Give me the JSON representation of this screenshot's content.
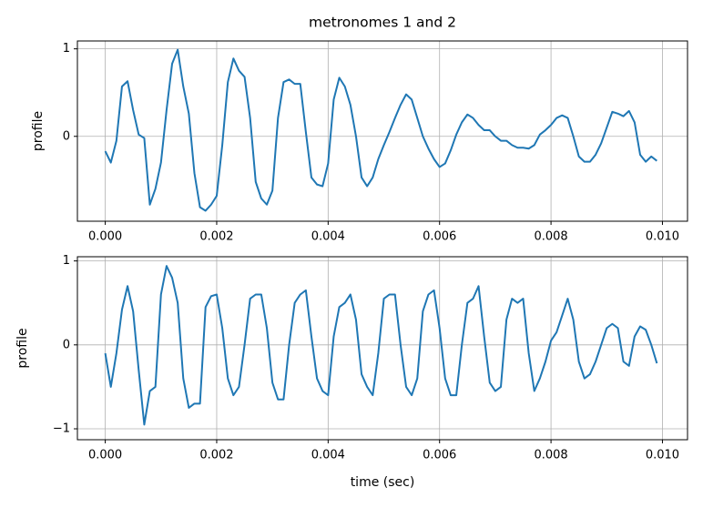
{
  "chart_data": [
    {
      "type": "line",
      "title": "metronomes 1 and 2",
      "ylabel": "profile",
      "color": "#1f77b4",
      "grid": true,
      "xlim": [
        -0.0005,
        0.01045
      ],
      "ylim": [
        -0.97,
        1.09
      ],
      "xticks": [
        {
          "value": 0,
          "label": "0.000"
        },
        {
          "value": 0.002,
          "label": "0.002"
        },
        {
          "value": 0.004,
          "label": "0.004"
        },
        {
          "value": 0.006,
          "label": "0.006"
        },
        {
          "value": 0.008,
          "label": "0.008"
        },
        {
          "value": 0.01,
          "label": "0.010"
        }
      ],
      "yticks": [
        0,
        1
      ],
      "x": [
        0,
        0.0001,
        0.0002,
        0.0003,
        0.0004,
        0.0005,
        0.0006,
        0.0007,
        0.0008,
        0.0009,
        0.001,
        0.0011,
        0.0012,
        0.0013,
        0.0014,
        0.0015,
        0.0016,
        0.0017,
        0.0018,
        0.0019,
        0.002,
        0.0021,
        0.0022,
        0.0023,
        0.0024,
        0.0025,
        0.0026,
        0.0027,
        0.0028,
        0.0029,
        0.003,
        0.0031,
        0.0032,
        0.0033,
        0.0034,
        0.0035,
        0.0036,
        0.0037,
        0.0038,
        0.0039,
        0.004,
        0.0041,
        0.0042,
        0.0043,
        0.0044,
        0.0045,
        0.0046,
        0.0047,
        0.0048,
        0.0049,
        0.005,
        0.0051,
        0.0052,
        0.0053,
        0.0054,
        0.0055,
        0.0056,
        0.0057,
        0.0058,
        0.0059,
        0.006,
        0.0061,
        0.0062,
        0.0063,
        0.0064,
        0.0065,
        0.0066,
        0.0067,
        0.0068,
        0.0069,
        0.007,
        0.0071,
        0.0072,
        0.0073,
        0.0074,
        0.0075,
        0.0076,
        0.0077,
        0.0078,
        0.0079,
        0.008,
        0.0081,
        0.0082,
        0.0083,
        0.0084,
        0.0085,
        0.0086,
        0.0087,
        0.0088,
        0.0089,
        0.009,
        0.0091,
        0.0092,
        0.0093,
        0.0094,
        0.0095,
        0.0096,
        0.0097,
        0.0098,
        0.0099
      ],
      "values": [
        -0.17,
        -0.3,
        -0.05,
        0.57,
        0.63,
        0.3,
        0.02,
        -0.02,
        -0.78,
        -0.6,
        -0.3,
        0.3,
        0.83,
        0.99,
        0.57,
        0.26,
        -0.42,
        -0.81,
        -0.85,
        -0.78,
        -0.68,
        -0.1,
        0.62,
        0.89,
        0.75,
        0.68,
        0.21,
        -0.52,
        -0.71,
        -0.78,
        -0.62,
        0.21,
        0.62,
        0.65,
        0.6,
        0.6,
        0.05,
        -0.47,
        -0.55,
        -0.57,
        -0.31,
        0.42,
        0.67,
        0.57,
        0.36,
        0,
        -0.47,
        -0.57,
        -0.47,
        -0.26,
        -0.1,
        0.05,
        0.21,
        0.36,
        0.48,
        0.42,
        0.21,
        0,
        -0.14,
        -0.26,
        -0.35,
        -0.31,
        -0.16,
        0.02,
        0.16,
        0.25,
        0.21,
        0.13,
        0.07,
        0.07,
        0,
        -0.05,
        -0.05,
        -0.1,
        -0.13,
        -0.13,
        -0.14,
        -0.1,
        0.02,
        0.07,
        0.13,
        0.21,
        0.24,
        0.21,
        0,
        -0.23,
        -0.29,
        -0.29,
        -0.21,
        -0.08,
        0.1,
        0.28,
        0.26,
        0.23,
        0.29,
        0.16,
        -0.21,
        -0.29,
        -0.23,
        -0.28
      ]
    },
    {
      "type": "line",
      "xlabel": "time (sec)",
      "ylabel": "profile",
      "color": "#1f77b4",
      "grid": true,
      "xlim": [
        -0.0005,
        0.01045
      ],
      "ylim": [
        -1.13,
        1.05
      ],
      "xticks": [
        {
          "value": 0,
          "label": "0.000"
        },
        {
          "value": 0.002,
          "label": "0.002"
        },
        {
          "value": 0.004,
          "label": "0.004"
        },
        {
          "value": 0.006,
          "label": "0.006"
        },
        {
          "value": 0.008,
          "label": "0.008"
        },
        {
          "value": 0.01,
          "label": "0.010"
        }
      ],
      "yticks": [
        {
          "value": -1,
          "label": "−1"
        },
        0,
        1
      ],
      "x": [
        0,
        0.0001,
        0.0002,
        0.0003,
        0.0004,
        0.0005,
        0.0006,
        0.0007,
        0.0008,
        0.0009,
        0.001,
        0.0011,
        0.0012,
        0.0013,
        0.0014,
        0.0015,
        0.0016,
        0.0017,
        0.0018,
        0.0019,
        0.002,
        0.0021,
        0.0022,
        0.0023,
        0.0024,
        0.0025,
        0.0026,
        0.0027,
        0.0028,
        0.0029,
        0.003,
        0.0031,
        0.0032,
        0.0033,
        0.0034,
        0.0035,
        0.0036,
        0.0037,
        0.0038,
        0.0039,
        0.004,
        0.0041,
        0.0042,
        0.0043,
        0.0044,
        0.0045,
        0.0046,
        0.0047,
        0.0048,
        0.0049,
        0.005,
        0.0051,
        0.0052,
        0.0053,
        0.0054,
        0.0055,
        0.0056,
        0.0057,
        0.0058,
        0.0059,
        0.006,
        0.0061,
        0.0062,
        0.0063,
        0.0064,
        0.0065,
        0.0066,
        0.0067,
        0.0068,
        0.0069,
        0.007,
        0.0071,
        0.0072,
        0.0073,
        0.0074,
        0.0075,
        0.0076,
        0.0077,
        0.0078,
        0.0079,
        0.008,
        0.0081,
        0.0082,
        0.0083,
        0.0084,
        0.0085,
        0.0086,
        0.0087,
        0.0088,
        0.0089,
        0.009,
        0.0091,
        0.0092,
        0.0093,
        0.0094,
        0.0095,
        0.0096,
        0.0097,
        0.0098,
        0.0099
      ],
      "values": [
        -0.1,
        -0.5,
        -0.1,
        0.42,
        0.7,
        0.4,
        -0.3,
        -0.95,
        -0.55,
        -0.5,
        0.6,
        0.94,
        0.8,
        0.5,
        -0.4,
        -0.75,
        -0.7,
        -0.7,
        0.45,
        0.58,
        0.6,
        0.2,
        -0.4,
        -0.6,
        -0.5,
        0,
        0.55,
        0.6,
        0.6,
        0.2,
        -0.45,
        -0.65,
        -0.65,
        0,
        0.5,
        0.6,
        0.65,
        0.1,
        -0.4,
        -0.55,
        -0.6,
        0.1,
        0.45,
        0.5,
        0.6,
        0.3,
        -0.35,
        -0.5,
        -0.6,
        -0.1,
        0.55,
        0.6,
        0.6,
        0,
        -0.5,
        -0.6,
        -0.4,
        0.4,
        0.6,
        0.65,
        0.2,
        -0.4,
        -0.6,
        -0.6,
        0,
        0.5,
        0.55,
        0.7,
        0.1,
        -0.45,
        -0.55,
        -0.5,
        0.3,
        0.55,
        0.5,
        0.55,
        -0.1,
        -0.55,
        -0.4,
        -0.2,
        0.05,
        0.15,
        0.35,
        0.55,
        0.3,
        -0.2,
        -0.4,
        -0.35,
        -0.2,
        0,
        0.2,
        0.25,
        0.2,
        -0.2,
        -0.25,
        0.1,
        0.22,
        0.18,
        0,
        -0.22
      ]
    }
  ]
}
